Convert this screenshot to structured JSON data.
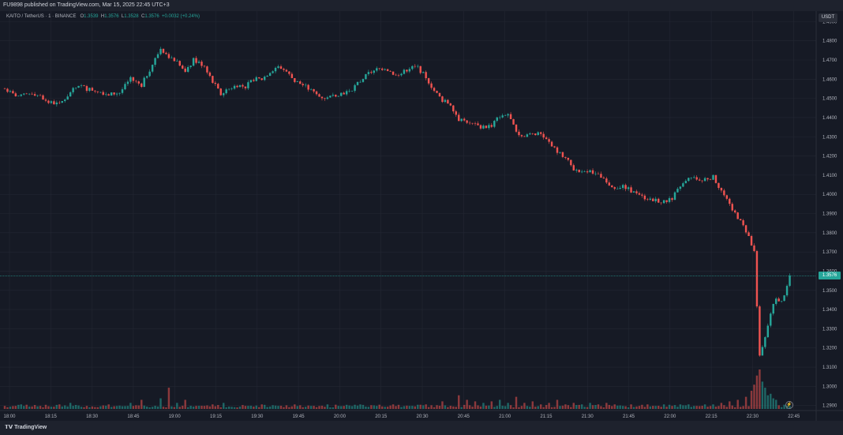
{
  "header": {
    "published_text": "FU9898 published on TradingView.com, Mar 15, 2025 22:45 UTC+3"
  },
  "legend": {
    "symbol": "KAITO / TetherUS · 1 · BINANCE",
    "open_label": "O",
    "open": "1.3539",
    "high_label": "H",
    "high": "1.3576",
    "low_label": "L",
    "low": "1.3528",
    "close_label": "C",
    "close": "1.3576",
    "change": "+0.0032 (+0.24%)"
  },
  "currency_button": "USDT",
  "last_price_label": "1.3576",
  "footer": {
    "brand": "TradingView"
  },
  "colors": {
    "up": "#26a69a",
    "down": "#ef5350",
    "background": "#161a25",
    "grid": "#232733"
  },
  "chart_data": {
    "type": "candlestick",
    "y_ticks": [
      "1.4900",
      "1.4800",
      "1.4700",
      "1.4600",
      "1.4500",
      "1.4400",
      "1.4300",
      "1.4200",
      "1.4100",
      "1.4000",
      "1.3900",
      "1.3800",
      "1.3700",
      "1.3600",
      "1.3500",
      "1.3400",
      "1.3300",
      "1.3200",
      "1.3100",
      "1.3000",
      "1.2900"
    ],
    "ylim": [
      1.2878,
      1.4955
    ],
    "x_ticks": [
      "18:00",
      "18:15",
      "18:30",
      "18:45",
      "19:00",
      "19:15",
      "19:30",
      "19:45",
      "20:00",
      "20:15",
      "20:30",
      "20:45",
      "21:00",
      "21:15",
      "21:30",
      "21:45",
      "22:00",
      "22:15",
      "22:30",
      "22:45"
    ],
    "last_price": 1.3576,
    "close_path": [
      [
        0,
        1.455
      ],
      [
        3,
        1.452
      ],
      [
        6,
        1.451
      ],
      [
        10,
        1.453
      ],
      [
        13,
        1.451
      ],
      [
        16,
        1.448
      ],
      [
        20,
        1.447
      ],
      [
        24,
        1.453
      ],
      [
        27,
        1.457
      ],
      [
        30,
        1.455
      ],
      [
        34,
        1.454
      ],
      [
        38,
        1.452
      ],
      [
        42,
        1.453
      ],
      [
        46,
        1.46
      ],
      [
        50,
        1.457
      ],
      [
        53,
        1.465
      ],
      [
        57,
        1.476
      ],
      [
        60,
        1.472
      ],
      [
        63,
        1.469
      ],
      [
        66,
        1.463
      ],
      [
        69,
        1.47
      ],
      [
        73,
        1.467
      ],
      [
        76,
        1.459
      ],
      [
        79,
        1.452
      ],
      [
        82,
        1.455
      ],
      [
        85,
        1.457
      ],
      [
        88,
        1.456
      ],
      [
        91,
        1.46
      ],
      [
        94,
        1.46
      ],
      [
        97,
        1.464
      ],
      [
        100,
        1.467
      ],
      [
        103,
        1.464
      ],
      [
        106,
        1.459
      ],
      [
        109,
        1.457
      ],
      [
        112,
        1.454
      ],
      [
        115,
        1.451
      ],
      [
        118,
        1.45
      ],
      [
        121,
        1.452
      ],
      [
        124,
        1.453
      ],
      [
        127,
        1.455
      ],
      [
        130,
        1.459
      ],
      [
        133,
        1.463
      ],
      [
        136,
        1.465
      ],
      [
        139,
        1.466
      ],
      [
        142,
        1.463
      ],
      [
        145,
        1.463
      ],
      [
        148,
        1.466
      ],
      [
        151,
        1.466
      ],
      [
        154,
        1.461
      ],
      [
        157,
        1.454
      ],
      [
        160,
        1.449
      ],
      [
        163,
        1.447
      ],
      [
        166,
        1.439
      ],
      [
        169,
        1.438
      ],
      [
        172,
        1.436
      ],
      [
        175,
        1.435
      ],
      [
        178,
        1.436
      ],
      [
        181,
        1.441
      ],
      [
        184,
        1.442
      ],
      [
        187,
        1.432
      ],
      [
        190,
        1.43
      ],
      [
        193,
        1.432
      ],
      [
        196,
        1.431
      ],
      [
        199,
        1.427
      ],
      [
        202,
        1.422
      ],
      [
        205,
        1.419
      ],
      [
        208,
        1.413
      ],
      [
        211,
        1.411
      ],
      [
        214,
        1.412
      ],
      [
        217,
        1.41
      ],
      [
        220,
        1.406
      ],
      [
        223,
        1.404
      ],
      [
        226,
        1.404
      ],
      [
        229,
        1.402
      ],
      [
        232,
        1.399
      ],
      [
        235,
        1.398
      ],
      [
        238,
        1.397
      ],
      [
        241,
        1.396
      ],
      [
        244,
        1.398
      ],
      [
        247,
        1.404
      ],
      [
        250,
        1.408
      ],
      [
        253,
        1.408
      ],
      [
        256,
        1.408
      ],
      [
        259,
        1.409
      ],
      [
        262,
        1.402
      ],
      [
        265,
        1.394
      ],
      [
        268,
        1.388
      ],
      [
        271,
        1.381
      ],
      [
        274,
        1.37
      ],
      [
        276,
        1.315
      ],
      [
        278,
        1.325
      ],
      [
        280,
        1.338
      ],
      [
        282,
        1.346
      ],
      [
        284,
        1.344
      ],
      [
        286,
        1.352
      ],
      [
        287,
        1.3576
      ]
    ],
    "volume_spikes": [
      [
        0,
        2
      ],
      [
        6,
        3
      ],
      [
        13,
        2
      ],
      [
        20,
        3
      ],
      [
        24,
        4
      ],
      [
        30,
        2
      ],
      [
        38,
        3
      ],
      [
        46,
        4
      ],
      [
        50,
        6
      ],
      [
        57,
        7
      ],
      [
        60,
        14
      ],
      [
        63,
        4
      ],
      [
        66,
        6
      ],
      [
        70,
        2
      ],
      [
        76,
        3
      ],
      [
        80,
        4
      ],
      [
        88,
        2
      ],
      [
        94,
        3
      ],
      [
        100,
        2
      ],
      [
        106,
        3
      ],
      [
        112,
        2
      ],
      [
        118,
        3
      ],
      [
        124,
        2
      ],
      [
        130,
        3
      ],
      [
        136,
        2
      ],
      [
        142,
        3
      ],
      [
        148,
        2
      ],
      [
        154,
        3
      ],
      [
        160,
        5
      ],
      [
        166,
        9
      ],
      [
        169,
        6
      ],
      [
        172,
        5
      ],
      [
        175,
        4
      ],
      [
        178,
        5
      ],
      [
        181,
        6
      ],
      [
        184,
        4
      ],
      [
        187,
        8
      ],
      [
        190,
        4
      ],
      [
        193,
        5
      ],
      [
        196,
        3
      ],
      [
        199,
        4
      ],
      [
        202,
        6
      ],
      [
        205,
        3
      ],
      [
        208,
        4
      ],
      [
        211,
        3
      ],
      [
        214,
        4
      ],
      [
        217,
        3
      ],
      [
        220,
        4
      ],
      [
        223,
        3
      ],
      [
        226,
        2
      ],
      [
        229,
        3
      ],
      [
        232,
        2
      ],
      [
        235,
        3
      ],
      [
        238,
        2
      ],
      [
        241,
        3
      ],
      [
        244,
        2
      ],
      [
        247,
        3
      ],
      [
        250,
        3
      ],
      [
        253,
        2
      ],
      [
        256,
        3
      ],
      [
        259,
        3
      ],
      [
        262,
        4
      ],
      [
        265,
        5
      ],
      [
        268,
        6
      ],
      [
        271,
        8
      ],
      [
        273,
        12
      ],
      [
        274,
        16
      ],
      [
        275,
        22
      ],
      [
        276,
        26
      ],
      [
        277,
        18
      ],
      [
        278,
        14
      ],
      [
        279,
        9
      ],
      [
        280,
        10
      ],
      [
        281,
        7
      ],
      [
        282,
        6
      ]
    ],
    "volume_max": 26
  }
}
